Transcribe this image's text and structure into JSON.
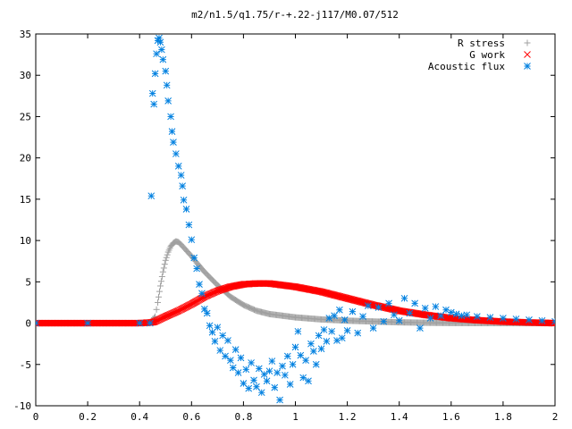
{
  "chart_data": {
    "type": "scatter",
    "title": "m2/n1.5/q1.75/r-+.22-j117/M0.07/512",
    "xlabel": "",
    "ylabel": "",
    "xlim": [
      0,
      2
    ],
    "ylim": [
      -10,
      35
    ],
    "xticks": [
      0,
      0.2,
      0.4,
      0.6,
      0.8,
      1,
      1.2,
      1.4,
      1.6,
      1.8,
      2
    ],
    "xtick_labels": [
      "0",
      "0.2",
      "0.4",
      "0.6",
      "0.8",
      "1",
      "1.2",
      "1.4",
      "1.6",
      "1.8",
      "2"
    ],
    "yticks": [
      -10,
      -5,
      0,
      5,
      10,
      15,
      20,
      25,
      30,
      35
    ],
    "ytick_labels": [
      "-10",
      "-5",
      "0",
      "5",
      "10",
      "15",
      "20",
      "25",
      "30",
      "35"
    ],
    "grid": false,
    "legend_position": "top-right",
    "series": [
      {
        "name": "R stress",
        "marker": "plus",
        "color": "#a0a0a0",
        "points": [
          [
            0,
            0
          ],
          [
            0.2,
            0
          ],
          [
            0.4,
            0
          ],
          [
            0.44,
            0
          ],
          [
            0.46,
            0.8
          ],
          [
            0.47,
            2.5
          ],
          [
            0.48,
            4.5
          ],
          [
            0.49,
            6.2
          ],
          [
            0.5,
            7.6
          ],
          [
            0.51,
            8.6
          ],
          [
            0.52,
            9.3
          ],
          [
            0.53,
            9.7
          ],
          [
            0.54,
            9.9
          ],
          [
            0.55,
            9.8
          ],
          [
            0.56,
            9.5
          ],
          [
            0.58,
            8.8
          ],
          [
            0.6,
            8.1
          ],
          [
            0.62,
            7.3
          ],
          [
            0.65,
            6.2
          ],
          [
            0.7,
            4.6
          ],
          [
            0.75,
            3.2
          ],
          [
            0.8,
            2.2
          ],
          [
            0.85,
            1.5
          ],
          [
            0.9,
            1.1
          ],
          [
            1,
            0.7
          ],
          [
            1.1,
            0.45
          ],
          [
            1.2,
            0.3
          ],
          [
            1.3,
            0.2
          ],
          [
            1.4,
            0.1
          ],
          [
            1.5,
            0.05
          ],
          [
            1.6,
            0.02
          ],
          [
            1.8,
            0
          ],
          [
            2,
            0
          ]
        ]
      },
      {
        "name": "G work",
        "marker": "cross",
        "color": "#ff0000",
        "points": [
          [
            0,
            0
          ],
          [
            0.2,
            0
          ],
          [
            0.4,
            0
          ],
          [
            0.45,
            0.1
          ],
          [
            0.46,
            0.2
          ],
          [
            0.5,
            0.8
          ],
          [
            0.55,
            1.5
          ],
          [
            0.6,
            2.3
          ],
          [
            0.65,
            3.2
          ],
          [
            0.7,
            3.9
          ],
          [
            0.75,
            4.4
          ],
          [
            0.8,
            4.7
          ],
          [
            0.85,
            4.8
          ],
          [
            0.9,
            4.8
          ],
          [
            0.95,
            4.6
          ],
          [
            1,
            4.4
          ],
          [
            1.1,
            3.8
          ],
          [
            1.2,
            3.0
          ],
          [
            1.3,
            2.2
          ],
          [
            1.4,
            1.5
          ],
          [
            1.5,
            1.0
          ],
          [
            1.6,
            0.6
          ],
          [
            1.7,
            0.35
          ],
          [
            1.8,
            0.18
          ],
          [
            1.9,
            0.08
          ],
          [
            2,
            0
          ]
        ]
      },
      {
        "name": "Acoustic flux",
        "marker": "star",
        "color": "#0080e0",
        "points": [
          [
            0,
            0
          ],
          [
            0.2,
            0
          ],
          [
            0.4,
            0
          ],
          [
            0.44,
            0
          ],
          [
            0.445,
            15.4
          ],
          [
            0.45,
            27.8
          ],
          [
            0.455,
            26.5
          ],
          [
            0.46,
            30.2
          ],
          [
            0.465,
            32.6
          ],
          [
            0.47,
            34.2
          ],
          [
            0.475,
            34.5
          ],
          [
            0.48,
            34.0
          ],
          [
            0.485,
            33.1
          ],
          [
            0.49,
            31.9
          ],
          [
            0.5,
            30.5
          ],
          [
            0.505,
            28.8
          ],
          [
            0.51,
            26.9
          ],
          [
            0.52,
            25.0
          ],
          [
            0.525,
            23.2
          ],
          [
            0.53,
            21.9
          ],
          [
            0.54,
            20.5
          ],
          [
            0.55,
            19.0
          ],
          [
            0.56,
            17.9
          ],
          [
            0.565,
            16.6
          ],
          [
            0.57,
            14.9
          ],
          [
            0.58,
            13.8
          ],
          [
            0.59,
            11.9
          ],
          [
            0.6,
            10.1
          ],
          [
            0.61,
            7.9
          ],
          [
            0.62,
            6.6
          ],
          [
            0.63,
            4.7
          ],
          [
            0.64,
            3.6
          ],
          [
            0.65,
            1.7
          ],
          [
            0.66,
            1.2
          ],
          [
            0.67,
            -0.3
          ],
          [
            0.68,
            -1.1
          ],
          [
            0.69,
            -2.2
          ],
          [
            0.7,
            -0.5
          ],
          [
            0.71,
            -3.3
          ],
          [
            0.72,
            -1.5
          ],
          [
            0.73,
            -4.0
          ],
          [
            0.74,
            -2.1
          ],
          [
            0.75,
            -4.5
          ],
          [
            0.76,
            -5.4
          ],
          [
            0.77,
            -3.2
          ],
          [
            0.78,
            -6.0
          ],
          [
            0.79,
            -4.2
          ],
          [
            0.8,
            -7.3
          ],
          [
            0.81,
            -5.6
          ],
          [
            0.82,
            -7.9
          ],
          [
            0.83,
            -4.8
          ],
          [
            0.84,
            -6.9
          ],
          [
            0.85,
            -7.7
          ],
          [
            0.86,
            -5.5
          ],
          [
            0.87,
            -8.4
          ],
          [
            0.88,
            -6.2
          ],
          [
            0.89,
            -7.0
          ],
          [
            0.9,
            -5.8
          ],
          [
            0.91,
            -4.6
          ],
          [
            0.92,
            -7.8
          ],
          [
            0.93,
            -6.0
          ],
          [
            0.94,
            -9.3
          ],
          [
            0.95,
            -5.2
          ],
          [
            0.96,
            -6.3
          ],
          [
            0.97,
            -4.0
          ],
          [
            0.98,
            -7.4
          ],
          [
            0.99,
            -5.0
          ],
          [
            1,
            -2.9
          ],
          [
            1.01,
            -1.0
          ],
          [
            1.02,
            -3.9
          ],
          [
            1.03,
            -6.6
          ],
          [
            1.04,
            -4.5
          ],
          [
            1.05,
            -7.0
          ],
          [
            1.06,
            -2.5
          ],
          [
            1.07,
            -3.4
          ],
          [
            1.08,
            -5.0
          ],
          [
            1.09,
            -1.5
          ],
          [
            1.1,
            -3.1
          ],
          [
            1.11,
            -0.8
          ],
          [
            1.12,
            -2.2
          ],
          [
            1.13,
            0.6
          ],
          [
            1.14,
            -1.0
          ],
          [
            1.15,
            0.9
          ],
          [
            1.16,
            -2.1
          ],
          [
            1.17,
            1.6
          ],
          [
            1.18,
            -1.8
          ],
          [
            1.19,
            0.4
          ],
          [
            1.2,
            -0.9
          ],
          [
            1.22,
            1.4
          ],
          [
            1.24,
            -1.2
          ],
          [
            1.26,
            0.8
          ],
          [
            1.28,
            2.1
          ],
          [
            1.3,
            -0.6
          ],
          [
            1.32,
            1.9
          ],
          [
            1.34,
            0.2
          ],
          [
            1.36,
            2.4
          ],
          [
            1.38,
            1.0
          ],
          [
            1.4,
            0.3
          ],
          [
            1.42,
            3.0
          ],
          [
            1.44,
            1.2
          ],
          [
            1.46,
            2.4
          ],
          [
            1.48,
            -0.6
          ],
          [
            1.5,
            1.8
          ],
          [
            1.52,
            0.6
          ],
          [
            1.54,
            2.0
          ],
          [
            1.56,
            0.9
          ],
          [
            1.58,
            1.6
          ],
          [
            1.6,
            1.3
          ],
          [
            1.62,
            1.1
          ],
          [
            1.64,
            0.9
          ],
          [
            1.66,
            1.0
          ],
          [
            1.7,
            0.8
          ],
          [
            1.75,
            0.7
          ],
          [
            1.8,
            0.6
          ],
          [
            1.85,
            0.5
          ],
          [
            1.9,
            0.4
          ],
          [
            1.95,
            0.3
          ],
          [
            2,
            0.2
          ]
        ]
      }
    ]
  }
}
